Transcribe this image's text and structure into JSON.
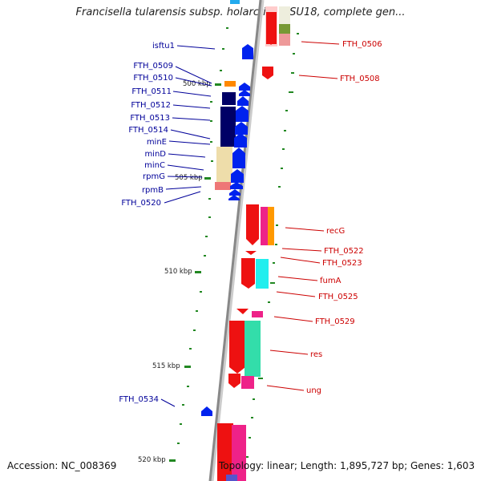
{
  "title": "Francisella tularensis subsp. holarctica OSU18, complete gen...",
  "footer": {
    "accession": "Accession: NC_008369",
    "summary": "Topology: linear; Length: 1,895,727 bp; Genes: 1,603"
  },
  "colors": {
    "left_label": "#000099",
    "right_label": "#cc0000",
    "axis": "#888888",
    "tick": "#228822"
  },
  "scale_markers": [
    "500 kbp",
    "505 kbp",
    "510 kbp",
    "515 kbp",
    "520 kbp"
  ],
  "genes_left": [
    "isftu1",
    "FTH_0509",
    "FTH_0510",
    "FTH_0511",
    "FTH_0512",
    "FTH_0513",
    "FTH_0514",
    "minE",
    "minD",
    "minC",
    "rpmG",
    "rpmB",
    "FTH_0520",
    "FTH_0534"
  ],
  "genes_right": [
    "FTH_0506",
    "FTH_0508",
    "recG",
    "FTH_0522",
    "FTH_0523",
    "fumA",
    "FTH_0525",
    "FTH_0529",
    "res",
    "ung"
  ]
}
